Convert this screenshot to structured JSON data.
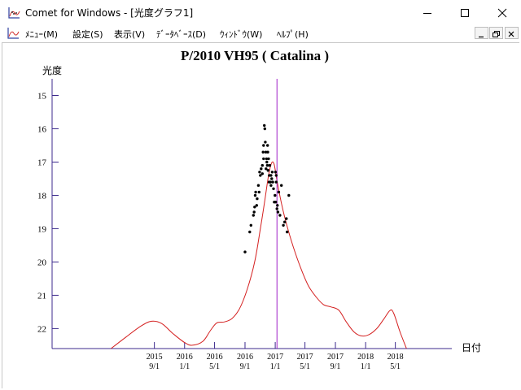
{
  "window": {
    "title": "Comet for Windows - [光度グラフ1]"
  },
  "menu": {
    "items": [
      "ﾒﾆｭｰ(M)",
      "設定(S)",
      "表示(V)",
      "ﾃﾞｰﾀﾍﾞｰｽ(D)",
      "ｳｨﾝﾄﾞｳ(W)",
      "ﾍﾙﾌﾟ(H)"
    ]
  },
  "icons": {
    "app": "graph-app-icon",
    "minimize": "minimize-icon",
    "maximize": "maximize-icon",
    "close": "close-icon",
    "child_minimize": "child-minimize-icon",
    "child_restore": "child-restore-icon",
    "child_close": "child-close-icon"
  },
  "colors": {
    "axis": "#3c2a8c",
    "curve": "#d42020",
    "marker": "#a020c8",
    "points": "#000000"
  },
  "chart_data": {
    "type": "scatter",
    "title": "P/2010 VH95 ( Catalina )",
    "ylabel": "光度",
    "xlabel": "日付",
    "y_inverted": true,
    "ylim": [
      22.6,
      14.5
    ],
    "y_ticks": [
      15,
      16,
      17,
      18,
      19,
      20,
      21,
      22
    ],
    "xlim": [
      "2014-07-15",
      "2018-12-15"
    ],
    "x_ticks": [
      {
        "date": "2015-09-01",
        "year": "2015",
        "md": "9/1"
      },
      {
        "date": "2016-01-01",
        "year": "2016",
        "md": "1/1"
      },
      {
        "date": "2016-05-01",
        "year": "2016",
        "md": "5/1"
      },
      {
        "date": "2016-09-01",
        "year": "2016",
        "md": "9/1"
      },
      {
        "date": "2017-01-01",
        "year": "2017",
        "md": "1/1"
      },
      {
        "date": "2017-05-01",
        "year": "2017",
        "md": "5/1"
      },
      {
        "date": "2017-09-01",
        "year": "2017",
        "md": "9/1"
      },
      {
        "date": "2018-01-01",
        "year": "2018",
        "md": "1/1"
      },
      {
        "date": "2018-05-01",
        "year": "2018",
        "md": "5/1"
      }
    ],
    "marker_date": "2017-01-08",
    "curve": [
      [
        "2015-03-10",
        22.6
      ],
      [
        "2015-05-10",
        22.25
      ],
      [
        "2015-07-10",
        21.92
      ],
      [
        "2015-08-20",
        21.78
      ],
      [
        "2015-10-01",
        21.85
      ],
      [
        "2015-11-15",
        22.15
      ],
      [
        "2016-01-01",
        22.42
      ],
      [
        "2016-02-01",
        22.5
      ],
      [
        "2016-03-15",
        22.38
      ],
      [
        "2016-04-15",
        22.05
      ],
      [
        "2016-05-10",
        21.83
      ],
      [
        "2016-06-10",
        21.8
      ],
      [
        "2016-07-10",
        21.7
      ],
      [
        "2016-08-10",
        21.4
      ],
      [
        "2016-09-10",
        20.82
      ],
      [
        "2016-10-10",
        20.0
      ],
      [
        "2016-11-01",
        19.05
      ],
      [
        "2016-11-20",
        18.15
      ],
      [
        "2016-12-05",
        17.4
      ],
      [
        "2016-12-18",
        17.02
      ],
      [
        "2016-12-28",
        17.08
      ],
      [
        "2017-01-08",
        17.55
      ],
      [
        "2017-01-25",
        18.2
      ],
      [
        "2017-02-15",
        18.85
      ],
      [
        "2017-03-15",
        19.55
      ],
      [
        "2017-04-15",
        20.2
      ],
      [
        "2017-05-15",
        20.72
      ],
      [
        "2017-06-15",
        21.05
      ],
      [
        "2017-07-15",
        21.28
      ],
      [
        "2017-08-15",
        21.35
      ],
      [
        "2017-09-15",
        21.45
      ],
      [
        "2017-10-15",
        21.8
      ],
      [
        "2017-11-15",
        22.1
      ],
      [
        "2017-12-15",
        22.22
      ],
      [
        "2018-01-15",
        22.18
      ],
      [
        "2018-02-15",
        22.0
      ],
      [
        "2018-03-15",
        21.72
      ],
      [
        "2018-04-10",
        21.45
      ],
      [
        "2018-04-25",
        21.55
      ],
      [
        "2018-05-20",
        22.1
      ],
      [
        "2018-06-15",
        22.6
      ]
    ],
    "points": [
      [
        "2016-09-01",
        19.7
      ],
      [
        "2016-09-20",
        19.1
      ],
      [
        "2016-09-25",
        18.9
      ],
      [
        "2016-10-05",
        18.6
      ],
      [
        "2016-10-08",
        18.5
      ],
      [
        "2016-10-10",
        18.35
      ],
      [
        "2016-10-12",
        18.0
      ],
      [
        "2016-10-14",
        17.9
      ],
      [
        "2016-10-18",
        18.3
      ],
      [
        "2016-10-20",
        18.1
      ],
      [
        "2016-10-25",
        17.7
      ],
      [
        "2016-10-28",
        17.9
      ],
      [
        "2016-10-30",
        17.3
      ],
      [
        "2016-11-02",
        17.4
      ],
      [
        "2016-11-05",
        17.2
      ],
      [
        "2016-11-10",
        17.1
      ],
      [
        "2016-11-10",
        17.35
      ],
      [
        "2016-11-13",
        16.7
      ],
      [
        "2016-11-15",
        16.5
      ],
      [
        "2016-11-15",
        16.9
      ],
      [
        "2016-11-18",
        15.9
      ],
      [
        "2016-11-20",
        16.0
      ],
      [
        "2016-11-22",
        16.4
      ],
      [
        "2016-11-24",
        16.7
      ],
      [
        "2016-11-25",
        17.2
      ],
      [
        "2016-11-27",
        16.9
      ],
      [
        "2016-11-28",
        17.0
      ],
      [
        "2016-11-30",
        17.1
      ],
      [
        "2016-12-01",
        16.5
      ],
      [
        "2016-12-02",
        16.7
      ],
      [
        "2016-12-03",
        17.25
      ],
      [
        "2016-12-05",
        16.9
      ],
      [
        "2016-12-07",
        17.6
      ],
      [
        "2016-12-08",
        17.4
      ],
      [
        "2016-12-10",
        17.1
      ],
      [
        "2016-12-12",
        17.6
      ],
      [
        "2016-12-15",
        17.4
      ],
      [
        "2016-12-15",
        17.7
      ],
      [
        "2016-12-18",
        17.5
      ],
      [
        "2016-12-20",
        17.3
      ],
      [
        "2016-12-22",
        17.6
      ],
      [
        "2016-12-25",
        17.8
      ],
      [
        "2016-12-28",
        18.2
      ],
      [
        "2016-12-31",
        18.0
      ],
      [
        "2017-01-02",
        17.3
      ],
      [
        "2017-01-03",
        18.2
      ],
      [
        "2017-01-05",
        17.6
      ],
      [
        "2017-01-05",
        17.4
      ],
      [
        "2017-01-08",
        18.4
      ],
      [
        "2017-01-10",
        18.3
      ],
      [
        "2017-01-12",
        18.5
      ],
      [
        "2017-01-15",
        17.9
      ],
      [
        "2017-01-20",
        18.6
      ],
      [
        "2017-01-26",
        17.7
      ],
      [
        "2017-02-03",
        18.9
      ],
      [
        "2017-02-08",
        18.8
      ],
      [
        "2017-02-15",
        18.7
      ],
      [
        "2017-02-18",
        19.1
      ],
      [
        "2017-02-25",
        18.0
      ]
    ]
  }
}
